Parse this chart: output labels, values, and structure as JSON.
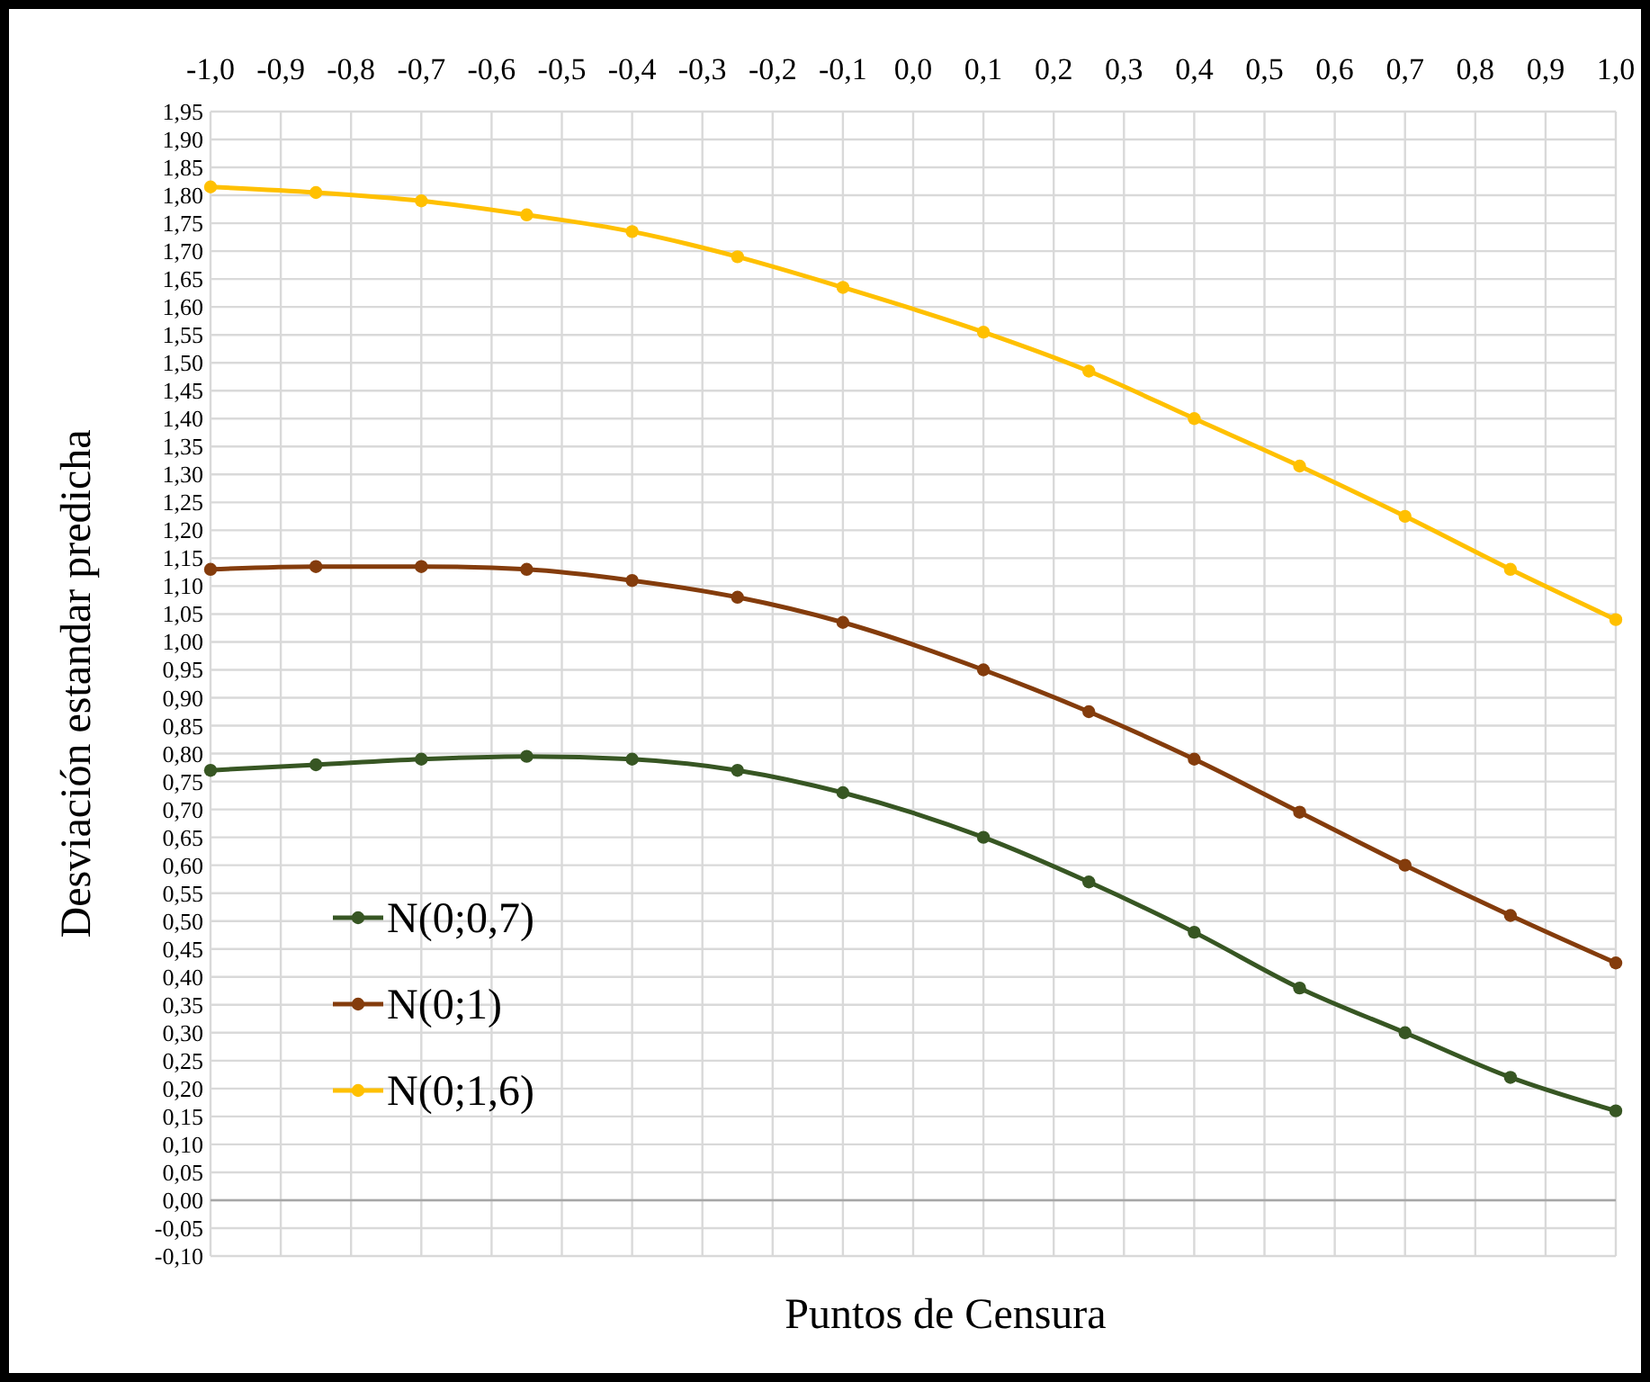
{
  "chart_data": {
    "type": "line",
    "xlabel": "Puntos de Censura",
    "ylabel": "Desviación estandar predicha",
    "x": [
      -1,
      -0.85,
      -0.7,
      -0.55,
      -0.4,
      -0.25,
      -0.1,
      0.1,
      0.25,
      0.4,
      0.55,
      0.7,
      0.85,
      1
    ],
    "series": [
      {
        "name": "N(0;0,7)",
        "color": "#375623",
        "values": [
          0.77,
          0.78,
          0.79,
          0.795,
          0.79,
          0.77,
          0.73,
          0.65,
          0.57,
          0.48,
          0.38,
          0.3,
          0.22,
          0.16
        ]
      },
      {
        "name": "N(0;1)",
        "color": "#843c0c",
        "values": [
          1.13,
          1.135,
          1.135,
          1.13,
          1.11,
          1.08,
          1.035,
          0.95,
          0.875,
          0.79,
          0.695,
          0.6,
          0.51,
          0.425
        ]
      },
      {
        "name": "N(0;1,6)",
        "color": "#ffc000",
        "values": [
          1.815,
          1.805,
          1.79,
          1.765,
          1.735,
          1.69,
          1.635,
          1.555,
          1.485,
          1.4,
          1.315,
          1.225,
          1.13,
          1.04
        ]
      }
    ],
    "xlim": [
      -1,
      1
    ],
    "xticks": [
      {
        "value": -1,
        "label": "-1,0"
      },
      {
        "value": -0.9,
        "label": "-0,9"
      },
      {
        "value": -0.8,
        "label": "-0,8"
      },
      {
        "value": -0.7,
        "label": "-0,7"
      },
      {
        "value": -0.6,
        "label": "-0,6"
      },
      {
        "value": -0.5,
        "label": "-0,5"
      },
      {
        "value": -0.4,
        "label": "-0,4"
      },
      {
        "value": -0.3,
        "label": "-0,3"
      },
      {
        "value": -0.2,
        "label": "-0,2"
      },
      {
        "value": -0.1,
        "label": "-0,1"
      },
      {
        "value": 0,
        "label": "0,0"
      },
      {
        "value": 0.1,
        "label": "0,1"
      },
      {
        "value": 0.2,
        "label": "0,2"
      },
      {
        "value": 0.3,
        "label": "0,3"
      },
      {
        "value": 0.4,
        "label": "0,4"
      },
      {
        "value": 0.5,
        "label": "0,5"
      },
      {
        "value": 0.6,
        "label": "0,6"
      },
      {
        "value": 0.7,
        "label": "0,7"
      },
      {
        "value": 0.8,
        "label": "0,8"
      },
      {
        "value": 0.9,
        "label": "0,9"
      },
      {
        "value": 1,
        "label": "1,0"
      }
    ],
    "ylim": [
      -0.1,
      1.95
    ],
    "yticks": [
      {
        "value": -0.1,
        "label": "-0,10"
      },
      {
        "value": -0.05,
        "label": "-0,05"
      },
      {
        "value": 0,
        "label": "0,00"
      },
      {
        "value": 0.05,
        "label": "0,05"
      },
      {
        "value": 0.1,
        "label": "0,10"
      },
      {
        "value": 0.15,
        "label": "0,15"
      },
      {
        "value": 0.2,
        "label": "0,20"
      },
      {
        "value": 0.25,
        "label": "0,25"
      },
      {
        "value": 0.3,
        "label": "0,30"
      },
      {
        "value": 0.35,
        "label": "0,35"
      },
      {
        "value": 0.4,
        "label": "0,40"
      },
      {
        "value": 0.45,
        "label": "0,45"
      },
      {
        "value": 0.5,
        "label": "0,50"
      },
      {
        "value": 0.55,
        "label": "0,55"
      },
      {
        "value": 0.6,
        "label": "0,60"
      },
      {
        "value": 0.65,
        "label": "0,65"
      },
      {
        "value": 0.7,
        "label": "0,70"
      },
      {
        "value": 0.75,
        "label": "0,75"
      },
      {
        "value": 0.8,
        "label": "0,80"
      },
      {
        "value": 0.85,
        "label": "0,85"
      },
      {
        "value": 0.9,
        "label": "0,90"
      },
      {
        "value": 0.95,
        "label": "0,95"
      },
      {
        "value": 1,
        "label": "1,00"
      },
      {
        "value": 1.05,
        "label": "1,05"
      },
      {
        "value": 1.1,
        "label": "1,10"
      },
      {
        "value": 1.15,
        "label": "1,15"
      },
      {
        "value": 1.2,
        "label": "1,20"
      },
      {
        "value": 1.25,
        "label": "1,25"
      },
      {
        "value": 1.3,
        "label": "1,30"
      },
      {
        "value": 1.35,
        "label": "1,35"
      },
      {
        "value": 1.4,
        "label": "1,40"
      },
      {
        "value": 1.45,
        "label": "1,45"
      },
      {
        "value": 1.5,
        "label": "1,50"
      },
      {
        "value": 1.55,
        "label": "1,55"
      },
      {
        "value": 1.6,
        "label": "1,60"
      },
      {
        "value": 1.65,
        "label": "1,65"
      },
      {
        "value": 1.7,
        "label": "1,70"
      },
      {
        "value": 1.75,
        "label": "1,75"
      },
      {
        "value": 1.8,
        "label": "1,80"
      },
      {
        "value": 1.85,
        "label": "1,85"
      },
      {
        "value": 1.9,
        "label": "1,90"
      },
      {
        "value": 1.95,
        "label": "1,95"
      }
    ],
    "grid": true,
    "legend": "bottom left",
    "marker": "circle",
    "line_style": "solid"
  }
}
